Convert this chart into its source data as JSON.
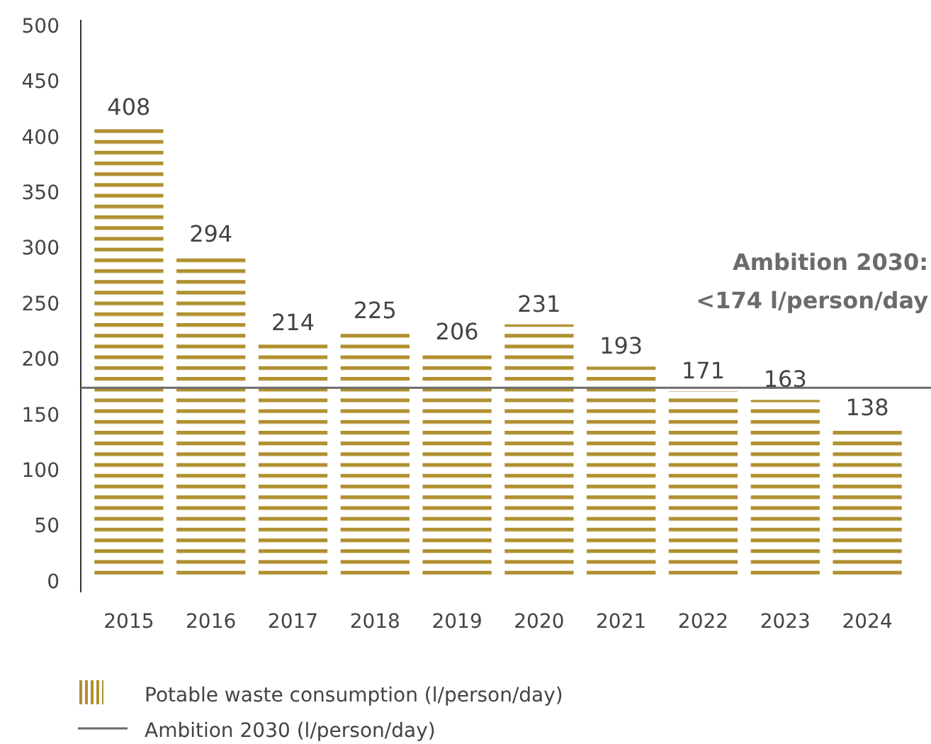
{
  "chart_data": {
    "type": "bar",
    "categories": [
      "2015",
      "2016",
      "2017",
      "2018",
      "2019",
      "2020",
      "2021",
      "2022",
      "2023",
      "2024"
    ],
    "series": [
      {
        "name": "Potable waste consumption (l/person/day)",
        "color": "#b0902f",
        "values": [
          408,
          294,
          214,
          225,
          206,
          231,
          193,
          171,
          163,
          138
        ]
      }
    ],
    "ylim": [
      0,
      500
    ],
    "yticks": [
      0,
      50,
      100,
      150,
      200,
      250,
      300,
      350,
      400,
      450,
      500
    ],
    "grid": false,
    "data_labels": true,
    "legend": "bottom",
    "ref_lines": [
      {
        "axis": "y",
        "value": 174,
        "label": "Ambition 2030:\n<174 l/person/day",
        "color": "#6b6b6b",
        "line_style": "solid"
      }
    ],
    "annotations": [
      "Ambition 2030 (l/person/day)"
    ]
  }
}
